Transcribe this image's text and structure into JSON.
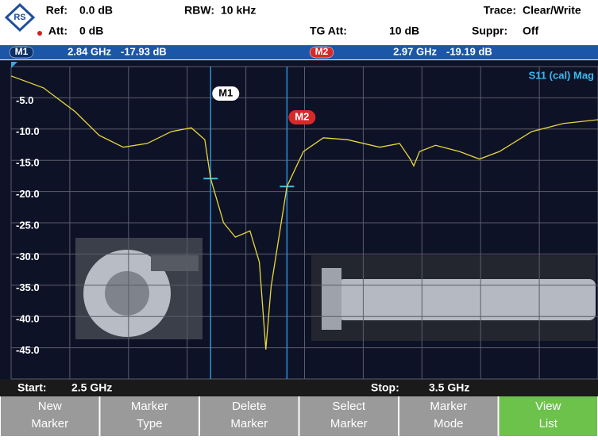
{
  "header": {
    "ref_label": "Ref:",
    "ref_value": "0.0 dB",
    "rbw_label": "RBW:",
    "rbw_value": "10 kHz",
    "trace_label": "Trace:",
    "trace_value": "Clear/Write",
    "att_label": "Att:",
    "att_value": "0 dB",
    "tg_att_label": "TG Att:",
    "tg_att_value": "10 dB",
    "suppr_label": "Suppr:",
    "suppr_value": "Off"
  },
  "chart": {
    "type": "line",
    "trace_name": "S11 (cal) Mag",
    "color": "#e8d83a",
    "x": [
      2.5,
      2.555,
      2.609,
      2.65,
      2.691,
      2.732,
      2.773,
      2.807,
      2.83,
      2.84,
      2.862,
      2.882,
      2.907,
      2.923,
      2.934,
      2.943,
      2.97,
      2.998,
      3.032,
      3.073,
      3.128,
      3.162,
      3.18,
      3.186,
      3.196,
      3.223,
      3.264,
      3.298,
      3.332,
      3.387,
      3.441,
      3.5
    ],
    "values": [
      -1.5,
      -3.4,
      -7.2,
      -11.0,
      -12.9,
      -12.3,
      -10.4,
      -9.8,
      -11.7,
      -17.93,
      -25.0,
      -27.3,
      -26.3,
      -31.3,
      -45.3,
      -35.2,
      -19.19,
      -13.6,
      -11.4,
      -11.7,
      -12.9,
      -12.3,
      -14.8,
      -15.9,
      -13.6,
      -12.6,
      -13.6,
      -14.8,
      -13.6,
      -10.4,
      -9.1,
      -8.5
    ],
    "xlim": [
      2.5,
      3.5
    ],
    "xticks": [
      2.5,
      2.6,
      2.7,
      2.8,
      2.9,
      3.0,
      3.1,
      3.2,
      3.3,
      3.4,
      3.5
    ],
    "ylim": [
      -50,
      0
    ],
    "yticks": [
      0,
      {
        "value": -5,
        "label": "-5.0"
      },
      {
        "value": -10,
        "label": "-10.0"
      },
      {
        "value": -15,
        "label": "-15.0"
      },
      {
        "value": -20,
        "label": "-20.0"
      },
      {
        "value": -25,
        "label": "-25.0"
      },
      {
        "value": -30,
        "label": "-30.0"
      },
      {
        "value": -35,
        "label": "-35.0"
      },
      {
        "value": -40,
        "label": "-40.0"
      },
      {
        "value": -45,
        "label": "-45.0"
      },
      -50
    ],
    "grid": true,
    "markers": [
      {
        "name": "M1",
        "x": 2.84,
        "y": -17.93,
        "x_label": "2.84 GHz",
        "y_label": "-17.93 dB"
      },
      {
        "name": "M2",
        "x": 2.97,
        "y": -19.19,
        "x_label": "2.97 GHz",
        "y_label": "-19.19 dB"
      }
    ]
  },
  "footer": {
    "start_label": "Start:",
    "start_value": "2.5 GHz",
    "stop_label": "Stop:",
    "stop_value": "3.5 GHz"
  },
  "softkeys": [
    [
      "New",
      "Marker"
    ],
    [
      "Marker",
      "Type"
    ],
    [
      "Delete",
      "Marker"
    ],
    [
      "Select",
      "Marker"
    ],
    [
      "Marker",
      "Mode"
    ],
    [
      "View",
      "List"
    ]
  ]
}
